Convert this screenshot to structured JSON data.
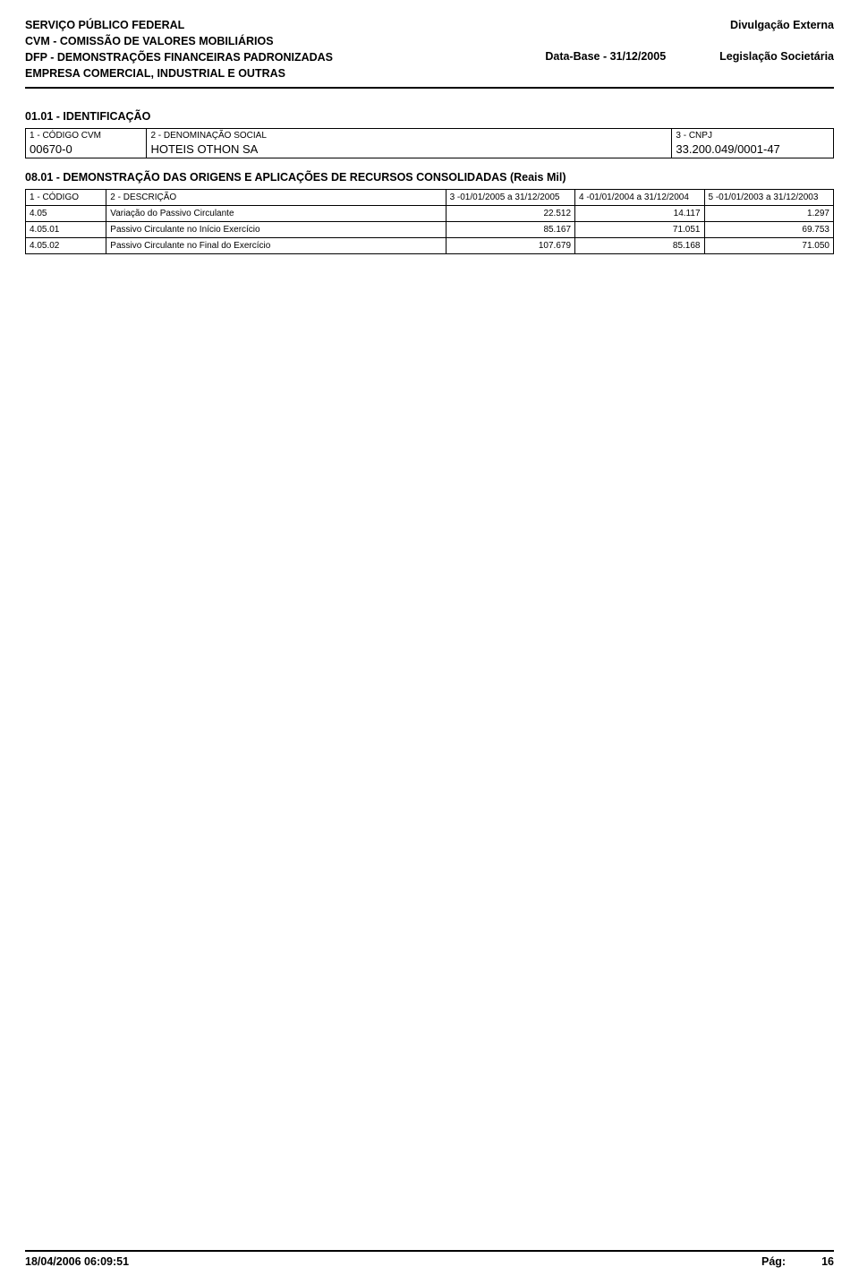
{
  "header": {
    "left": [
      "SERVIÇO PÚBLICO FEDERAL",
      "CVM - COMISSÃO DE VALORES MOBILIÁRIOS",
      "DFP - DEMONSTRAÇÕES FINANCEIRAS PADRONIZADAS",
      "EMPRESA COMERCIAL, INDUSTRIAL E OUTRAS"
    ],
    "right_top": "Divulgação Externa",
    "data_base": "Data-Base - 31/12/2005",
    "legis": "Legislação Societária"
  },
  "identification": {
    "section_title": "01.01 - IDENTIFICAÇÃO",
    "labels": {
      "codigo": "1 - CÓDIGO CVM",
      "denom": "2 - DENOMINAÇÃO SOCIAL",
      "cnpj": "3 - CNPJ"
    },
    "values": {
      "codigo": "00670-0",
      "denom": "HOTEIS OTHON SA",
      "cnpj": "33.200.049/0001-47"
    }
  },
  "demo": {
    "title": "08.01 - DEMONSTRAÇÃO DAS ORIGENS E APLICAÇÕES DE RECURSOS CONSOLIDADAS (Reais Mil)",
    "columns": [
      "1 - CÓDIGO",
      "2 - DESCRIÇÃO",
      "3 -01/01/2005 a 31/12/2005",
      "4 -01/01/2004 a 31/12/2004",
      "5 -01/01/2003 a 31/12/2003"
    ],
    "rows": [
      {
        "code": "4.05",
        "desc": "Variação do Passivo Circulante",
        "v1": "22.512",
        "v2": "14.117",
        "v3": "1.297"
      },
      {
        "code": "4.05.01",
        "desc": "Passivo Circulante no Início Exercício",
        "v1": "85.167",
        "v2": "71.051",
        "v3": "69.753"
      },
      {
        "code": "4.05.02",
        "desc": "Passivo Circulante no Final do Exercício",
        "v1": "107.679",
        "v2": "85.168",
        "v3": "71.050"
      }
    ]
  },
  "footer": {
    "timestamp": "18/04/2006 06:09:51",
    "page_label": "Pág:",
    "page_num": "16"
  },
  "colors": {
    "text": "#000000",
    "background": "#ffffff",
    "border": "#000000"
  }
}
